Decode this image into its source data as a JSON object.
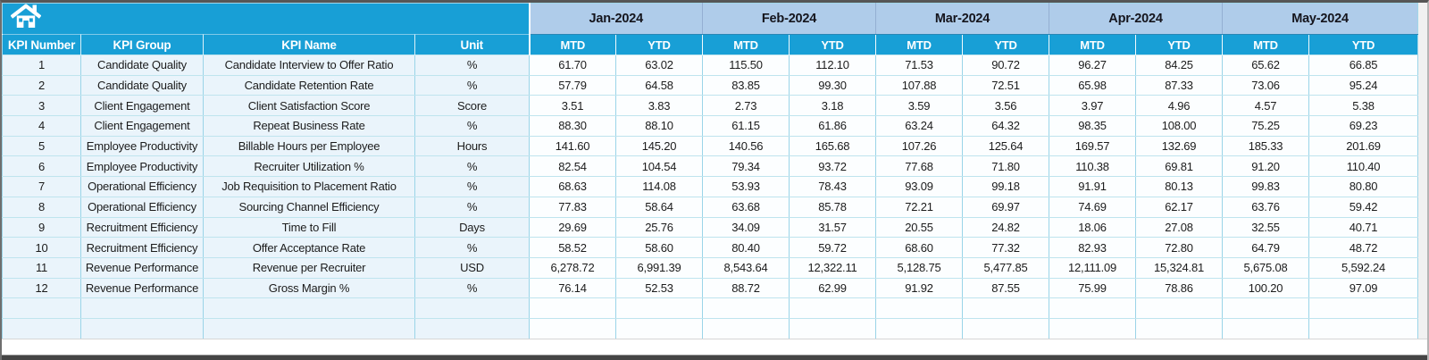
{
  "colors": {
    "accent_cyan": "#189fd6",
    "band_blue": "#afccea",
    "cell_blue": "#eaf4fb",
    "grid_teal": "#a0d6e8",
    "text_dark": "#1c1c1c",
    "frame_gray": "#565656"
  },
  "header": {
    "kpi_columns": [
      "KPI Number",
      "KPI Group",
      "KPI Name",
      "Unit"
    ],
    "months": [
      "Jan-2024",
      "Feb-2024",
      "Mar-2024",
      "Apr-2024",
      "May-2024"
    ],
    "sub_columns": [
      "MTD",
      "YTD"
    ],
    "home_icon": "home-icon"
  },
  "empty_row_count": 2,
  "rows": [
    {
      "number": "1",
      "group": "Candidate Quality",
      "name": "Candidate Interview to Offer Ratio",
      "unit": "%",
      "values": [
        "61.70",
        "63.02",
        "115.50",
        "112.10",
        "71.53",
        "90.72",
        "96.27",
        "84.25",
        "65.62",
        "66.85"
      ]
    },
    {
      "number": "2",
      "group": "Candidate Quality",
      "name": "Candidate Retention Rate",
      "unit": "%",
      "values": [
        "57.79",
        "64.58",
        "83.85",
        "99.30",
        "107.88",
        "72.51",
        "65.98",
        "87.33",
        "73.06",
        "95.24"
      ]
    },
    {
      "number": "3",
      "group": "Client Engagement",
      "name": "Client Satisfaction Score",
      "unit": "Score",
      "values": [
        "3.51",
        "3.83",
        "2.73",
        "3.18",
        "3.59",
        "3.56",
        "3.97",
        "4.96",
        "4.57",
        "5.38"
      ]
    },
    {
      "number": "4",
      "group": "Client Engagement",
      "name": "Repeat Business Rate",
      "unit": "%",
      "values": [
        "88.30",
        "88.10",
        "61.15",
        "61.86",
        "63.24",
        "64.32",
        "98.35",
        "108.00",
        "75.25",
        "69.23"
      ]
    },
    {
      "number": "5",
      "group": "Employee Productivity",
      "name": "Billable Hours per Employee",
      "unit": "Hours",
      "values": [
        "141.60",
        "145.20",
        "140.56",
        "165.68",
        "107.26",
        "125.64",
        "169.57",
        "132.69",
        "185.33",
        "201.69"
      ]
    },
    {
      "number": "6",
      "group": "Employee Productivity",
      "name": "Recruiter Utilization %",
      "unit": "%",
      "values": [
        "82.54",
        "104.54",
        "79.34",
        "93.72",
        "77.68",
        "71.80",
        "110.38",
        "69.81",
        "91.20",
        "110.40"
      ]
    },
    {
      "number": "7",
      "group": "Operational Efficiency",
      "name": "Job Requisition to Placement Ratio",
      "unit": "%",
      "values": [
        "68.63",
        "114.08",
        "53.93",
        "78.43",
        "93.09",
        "99.18",
        "91.91",
        "80.13",
        "99.83",
        "80.80"
      ]
    },
    {
      "number": "8",
      "group": "Operational Efficiency",
      "name": "Sourcing Channel Efficiency",
      "unit": "%",
      "values": [
        "77.83",
        "58.64",
        "63.68",
        "85.78",
        "72.21",
        "69.97",
        "74.69",
        "62.17",
        "63.76",
        "59.42"
      ]
    },
    {
      "number": "9",
      "group": "Recruitment Efficiency",
      "name": "Time to Fill",
      "unit": "Days",
      "values": [
        "29.69",
        "25.76",
        "34.09",
        "31.57",
        "20.55",
        "24.82",
        "18.06",
        "27.08",
        "32.55",
        "40.71"
      ]
    },
    {
      "number": "10",
      "group": "Recruitment Efficiency",
      "name": "Offer Acceptance Rate",
      "unit": "%",
      "values": [
        "58.52",
        "58.60",
        "80.40",
        "59.72",
        "68.60",
        "77.32",
        "82.93",
        "72.80",
        "64.79",
        "48.72"
      ]
    },
    {
      "number": "11",
      "group": "Revenue Performance",
      "name": "Revenue per Recruiter",
      "unit": "USD",
      "values": [
        "6,278.72",
        "6,991.39",
        "8,543.64",
        "12,322.11",
        "5,128.75",
        "5,477.85",
        "12,111.09",
        "15,324.81",
        "5,675.08",
        "5,592.24"
      ]
    },
    {
      "number": "12",
      "group": "Revenue Performance",
      "name": "Gross Margin %",
      "unit": "%",
      "values": [
        "76.14",
        "52.53",
        "88.72",
        "62.99",
        "91.92",
        "87.55",
        "75.99",
        "78.86",
        "100.20",
        "97.09"
      ]
    }
  ]
}
